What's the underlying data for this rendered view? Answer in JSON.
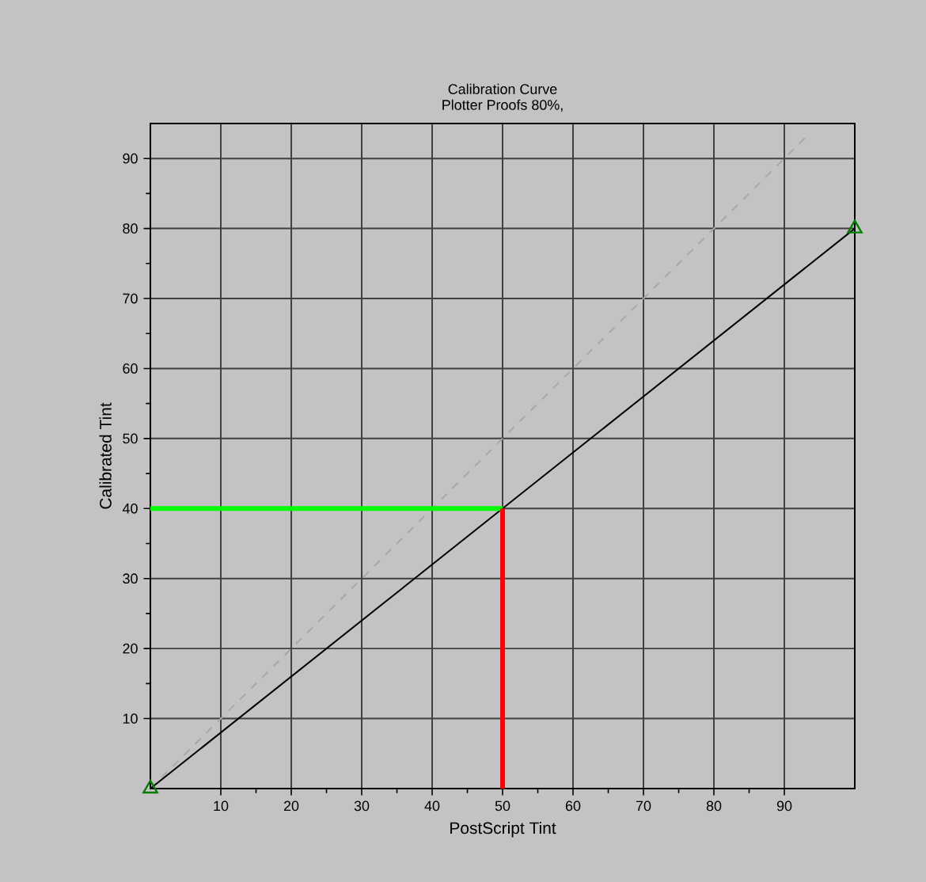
{
  "chart_data": {
    "type": "line",
    "title": "Calibration Curve",
    "subtitle": "Plotter Proofs 80%,",
    "xlabel": "PostScript Tint",
    "ylabel": "Calibrated Tint",
    "xlim": [
      0,
      100
    ],
    "ylim": [
      0,
      95
    ],
    "xticks": [
      10,
      20,
      30,
      40,
      50,
      60,
      70,
      80,
      90
    ],
    "yticks": [
      10,
      20,
      30,
      40,
      50,
      60,
      70,
      80,
      90
    ],
    "grid": true,
    "series": [
      {
        "color": "#a8a8a8",
        "line_style": "dashed",
        "x": [
          0,
          93
        ],
        "values": [
          0,
          93
        ]
      },
      {
        "color": "#000000",
        "x": [
          0,
          50,
          100
        ],
        "values": [
          0,
          40,
          80
        ]
      },
      {
        "color": "#00ff00",
        "x": [
          0,
          50
        ],
        "values": [
          40,
          40
        ]
      },
      {
        "color": "#ff0000",
        "x": [
          50,
          50
        ],
        "values": [
          0,
          40
        ]
      },
      {
        "type": "scatter",
        "color": "#008000",
        "marker": "triangle",
        "x": [
          0,
          100
        ],
        "values": [
          0,
          80
        ]
      }
    ]
  }
}
